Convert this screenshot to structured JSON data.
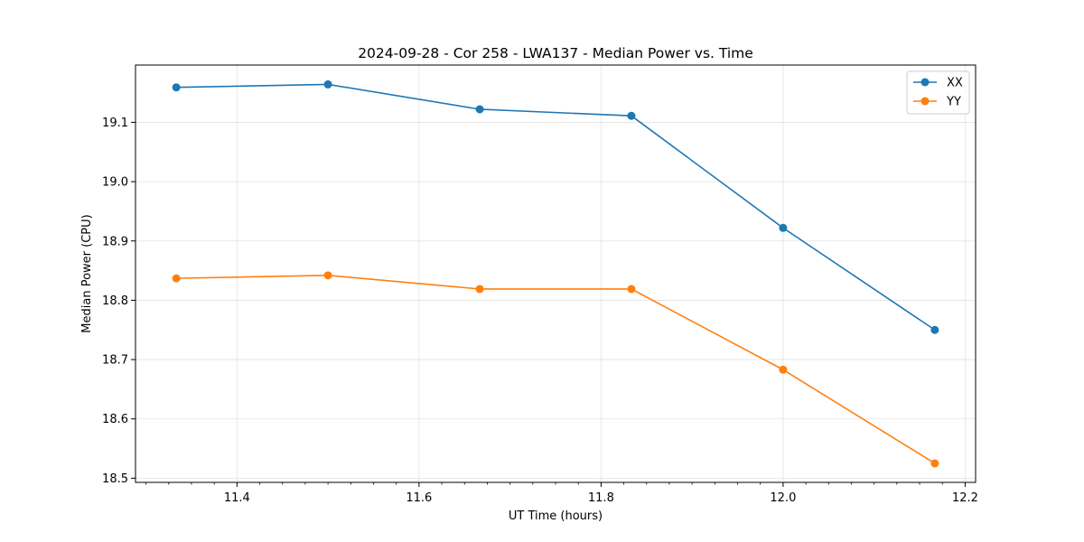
{
  "chart_data": {
    "type": "line",
    "title": "2024-09-28 - Cor 258 - LWA137 - Median Power vs. Time",
    "xlabel": "UT Time (hours)",
    "ylabel": "Median Power (CPU)",
    "xlim": [
      11.2885,
      12.2115
    ],
    "ylim": [
      18.493,
      19.1966
    ],
    "x_ticks": [
      11.4,
      11.6,
      11.8,
      12.0,
      12.2
    ],
    "x_tick_labels": [
      "11.4",
      "11.6",
      "11.8",
      "12.0",
      "12.2"
    ],
    "x_minor_step": 0.025,
    "y_ticks": [
      18.5,
      18.6,
      18.7,
      18.8,
      18.9,
      19.0,
      19.1
    ],
    "y_tick_labels": [
      "18.5",
      "18.6",
      "18.7",
      "18.8",
      "18.9",
      "19.0",
      "19.1"
    ],
    "grid": true,
    "legend_position": "top-right",
    "x": [
      11.3333,
      11.5,
      11.6667,
      11.8333,
      12.0,
      12.1667
    ],
    "series": [
      {
        "name": "XX",
        "color": "#1f77b4",
        "marker": "circle",
        "values": [
          19.159,
          19.164,
          19.122,
          19.111,
          18.922,
          18.75
        ]
      },
      {
        "name": "YY",
        "color": "#ff7f0e",
        "marker": "circle",
        "values": [
          18.837,
          18.842,
          18.819,
          18.819,
          18.683,
          18.525
        ]
      }
    ]
  }
}
